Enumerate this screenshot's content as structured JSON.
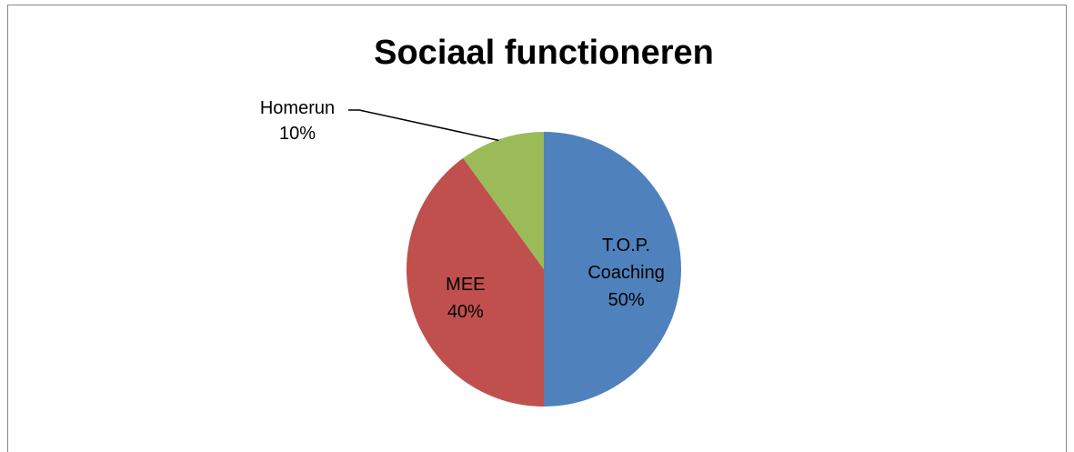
{
  "chart_data": {
    "type": "pie",
    "title": "Sociaal functioneren",
    "categories": [
      "T.O.P. Coaching",
      "MEE",
      "Homerun"
    ],
    "values": [
      50,
      40,
      10
    ],
    "value_labels": [
      "50%",
      "40%",
      "10%"
    ],
    "colors": [
      "#4f81bd",
      "#c0504d",
      "#9bbb59"
    ]
  }
}
